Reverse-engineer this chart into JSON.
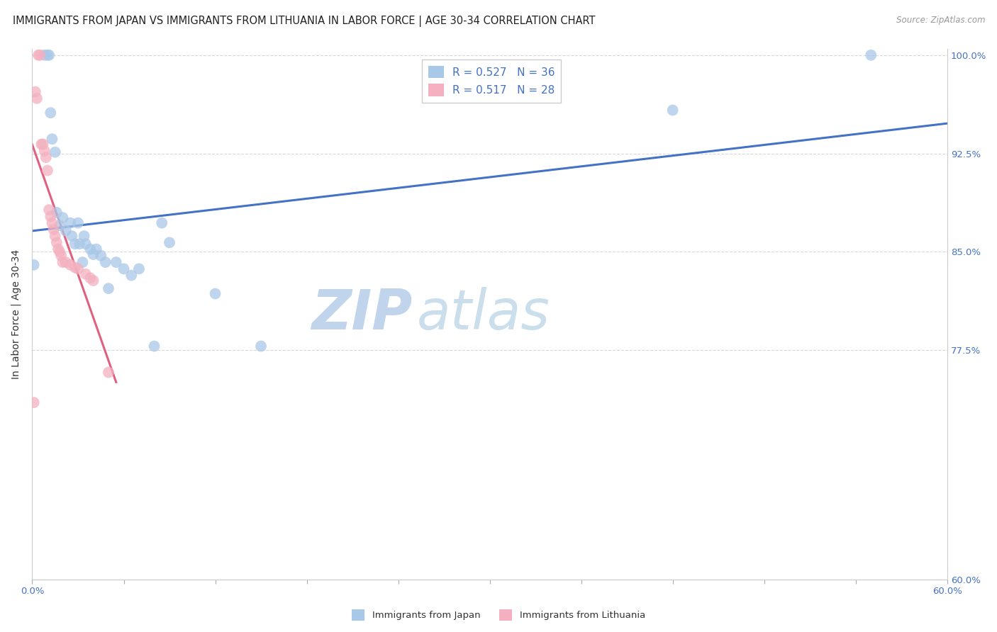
{
  "title": "IMMIGRANTS FROM JAPAN VS IMMIGRANTS FROM LITHUANIA IN LABOR FORCE | AGE 30-34 CORRELATION CHART",
  "source": "Source: ZipAtlas.com",
  "ylabel": "In Labor Force | Age 30-34",
  "xlim": [
    0.0,
    0.6
  ],
  "ylim": [
    0.6,
    1.005
  ],
  "xticks": [
    0.0,
    0.06,
    0.12,
    0.18,
    0.24,
    0.3,
    0.36,
    0.42,
    0.48,
    0.54,
    0.6
  ],
  "xticklabels_show": [
    "0.0%",
    "60.0%"
  ],
  "yticks": [
    0.6,
    0.775,
    0.85,
    0.925,
    1.0
  ],
  "yticklabels": [
    "60.0%",
    "77.5%",
    "85.0%",
    "92.5%",
    "100.0%"
  ],
  "grid_color": "#d8d8d8",
  "watermark_zip": "ZIP",
  "watermark_atlas": "atlas",
  "legend_R_japan": "0.527",
  "legend_N_japan": "36",
  "legend_R_lith": "0.517",
  "legend_N_lith": "28",
  "japan_color": "#a8c8e8",
  "lith_color": "#f4b0c0",
  "japan_line_color": "#4472c4",
  "lith_line_color": "#e06080",
  "japan_x": [
    0.001,
    0.008,
    0.01,
    0.011,
    0.012,
    0.013,
    0.015,
    0.016,
    0.018,
    0.02,
    0.022,
    0.025,
    0.026,
    0.028,
    0.03,
    0.031,
    0.033,
    0.034,
    0.035,
    0.038,
    0.04,
    0.042,
    0.045,
    0.048,
    0.05,
    0.055,
    0.06,
    0.065,
    0.07,
    0.08,
    0.085,
    0.09,
    0.12,
    0.15,
    0.42,
    0.55
  ],
  "japan_y": [
    0.84,
    1.0,
    1.0,
    1.0,
    0.956,
    0.936,
    0.926,
    0.88,
    0.87,
    0.876,
    0.866,
    0.872,
    0.862,
    0.856,
    0.872,
    0.856,
    0.842,
    0.862,
    0.856,
    0.852,
    0.848,
    0.852,
    0.847,
    0.842,
    0.822,
    0.842,
    0.837,
    0.832,
    0.837,
    0.778,
    0.872,
    0.857,
    0.818,
    0.778,
    0.958,
    1.0
  ],
  "lith_x": [
    0.001,
    0.002,
    0.003,
    0.004,
    0.005,
    0.006,
    0.007,
    0.008,
    0.009,
    0.01,
    0.011,
    0.012,
    0.013,
    0.014,
    0.015,
    0.016,
    0.017,
    0.018,
    0.019,
    0.02,
    0.022,
    0.025,
    0.028,
    0.03,
    0.035,
    0.038,
    0.04,
    0.05
  ],
  "lith_y": [
    0.735,
    0.972,
    0.967,
    1.0,
    1.0,
    0.932,
    0.932,
    0.927,
    0.922,
    0.912,
    0.882,
    0.877,
    0.872,
    0.867,
    0.862,
    0.857,
    0.852,
    0.85,
    0.847,
    0.842,
    0.842,
    0.84,
    0.838,
    0.837,
    0.833,
    0.83,
    0.828,
    0.758
  ],
  "background_color": "#ffffff",
  "title_fontsize": 10.5,
  "axis_label_fontsize": 10,
  "tick_fontsize": 9.5,
  "legend_fontsize": 11
}
